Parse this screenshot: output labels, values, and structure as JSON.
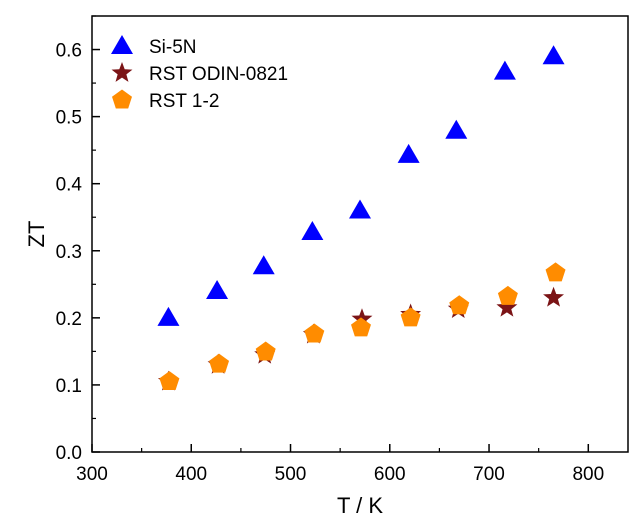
{
  "chart_data": {
    "type": "scatter",
    "xlabel": "T / K",
    "ylabel": "ZT",
    "xlim": [
      300,
      840
    ],
    "ylim": [
      0.0,
      0.65
    ],
    "xticks": [
      300,
      400,
      500,
      600,
      700,
      800
    ],
    "yticks": [
      0.0,
      0.1,
      0.2,
      0.3,
      0.4,
      0.5,
      0.6
    ],
    "xtick_labels": [
      "300",
      "400",
      "500",
      "600",
      "700",
      "800"
    ],
    "ytick_labels": [
      "0.0",
      "0.1",
      "0.2",
      "0.3",
      "0.4",
      "0.5",
      "0.6"
    ],
    "grid": false,
    "legend_position": "top-left",
    "series": [
      {
        "name": "Si-5N",
        "marker": "triangle",
        "color": "#0000ff",
        "x": [
          377,
          426,
          473,
          522,
          570,
          619,
          667,
          716,
          765
        ],
        "y": [
          0.2,
          0.24,
          0.277,
          0.328,
          0.36,
          0.443,
          0.479,
          0.567,
          0.59
        ]
      },
      {
        "name": "RST ODIN-0821",
        "marker": "star",
        "color": "#7b1416",
        "x": [
          377,
          427,
          474,
          523,
          572,
          621,
          669,
          718,
          765
        ],
        "y": [
          0.105,
          0.13,
          0.145,
          0.175,
          0.198,
          0.205,
          0.213,
          0.215,
          0.23
        ]
      },
      {
        "name": "RST 1-2",
        "marker": "pentagon",
        "color": "#ff8c00",
        "x": [
          378,
          428,
          475,
          524,
          571,
          621,
          670,
          719,
          767
        ],
        "y": [
          0.105,
          0.131,
          0.149,
          0.176,
          0.185,
          0.2,
          0.218,
          0.232,
          0.267
        ]
      }
    ]
  }
}
